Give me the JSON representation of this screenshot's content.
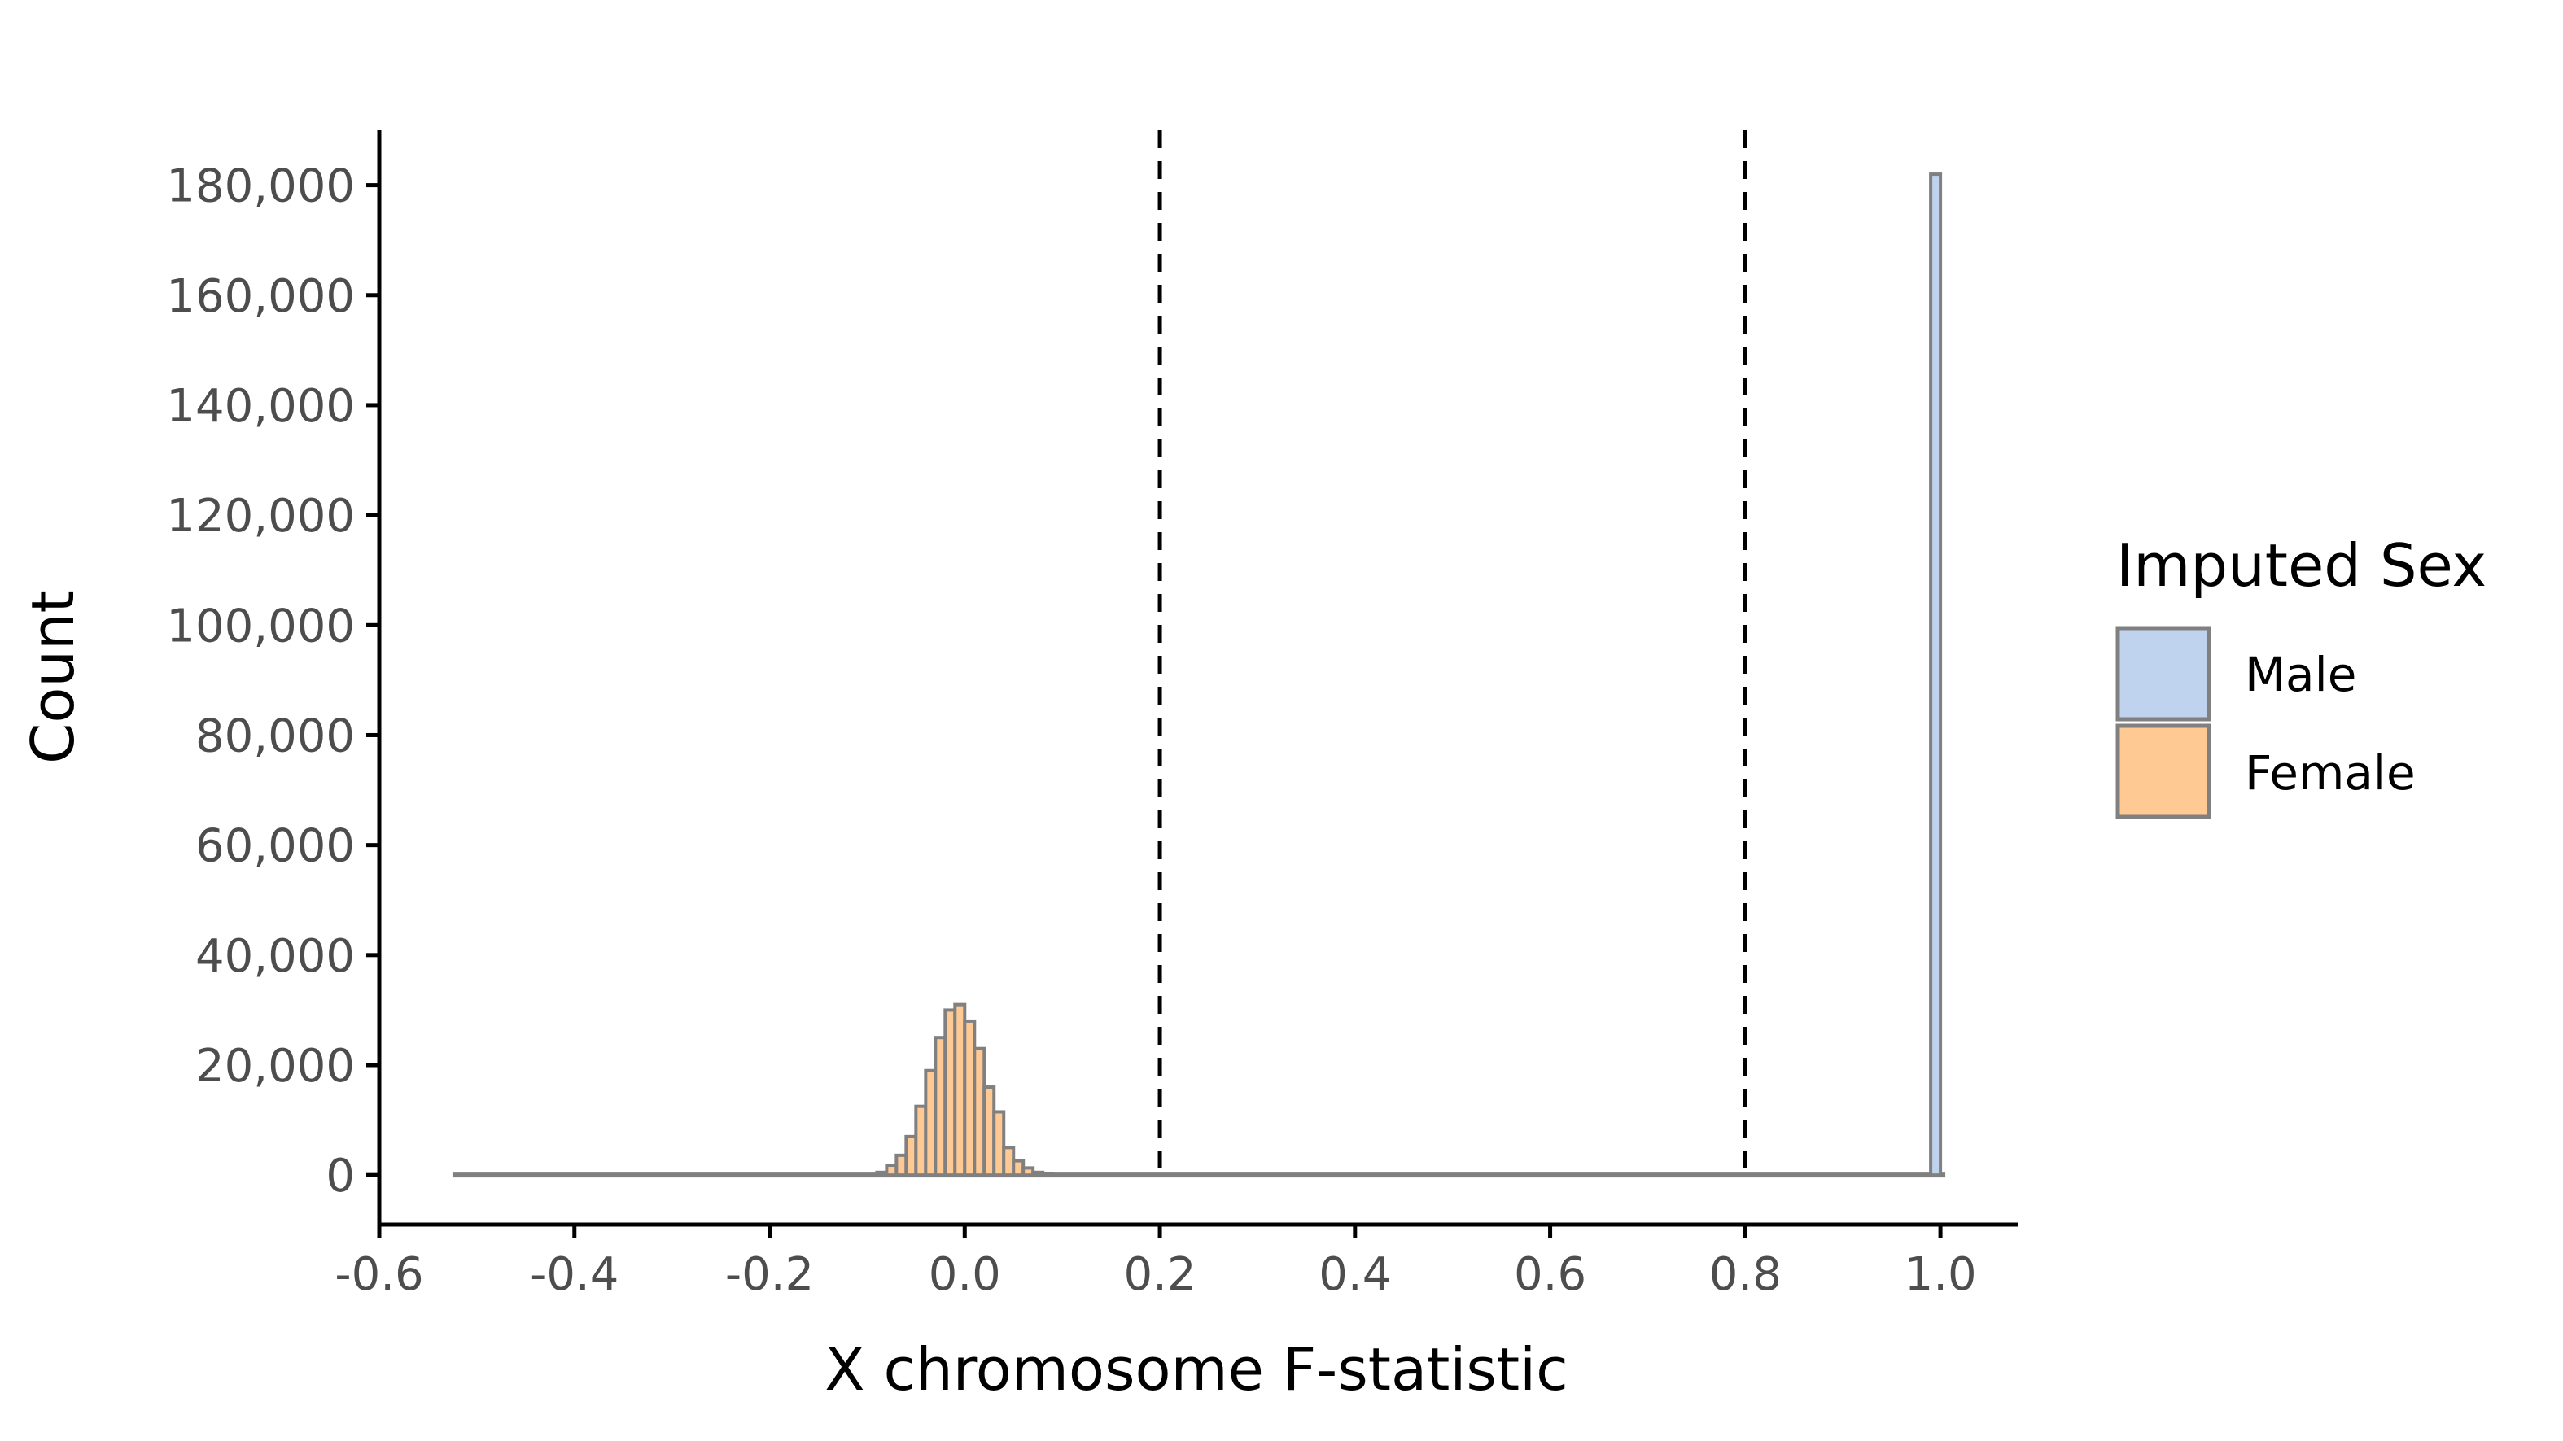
{
  "chart_data": {
    "type": "bar",
    "title": "",
    "xlabel": "X chromosome F-statistic",
    "ylabel": "Count",
    "xlim": [
      -0.6,
      1.08
    ],
    "ylim": [
      -9000,
      190000
    ],
    "x_ticks": [
      -0.6,
      -0.4,
      -0.2,
      0.0,
      0.2,
      0.4,
      0.6,
      0.8,
      1.0
    ],
    "x_tick_labels": [
      "-0.6",
      "-0.4",
      "-0.2",
      "0.0",
      "0.2",
      "0.4",
      "0.6",
      "0.8",
      "1.0"
    ],
    "y_ticks": [
      0,
      20000,
      40000,
      60000,
      80000,
      100000,
      120000,
      140000,
      160000,
      180000
    ],
    "y_tick_labels": [
      "0",
      "20,000",
      "40,000",
      "60,000",
      "80,000",
      "100,000",
      "120,000",
      "140,000",
      "160,000",
      "180,000"
    ],
    "x_range_of_bars": [
      -0.525,
      1.005
    ],
    "bin_width": 0.01,
    "series": [
      {
        "name": "Female",
        "color": "#ffc994",
        "bins": [
          {
            "x": -0.085,
            "count": 500
          },
          {
            "x": -0.075,
            "count": 1800
          },
          {
            "x": -0.065,
            "count": 3600
          },
          {
            "x": -0.055,
            "count": 7000
          },
          {
            "x": -0.045,
            "count": 12500
          },
          {
            "x": -0.035,
            "count": 19000
          },
          {
            "x": -0.025,
            "count": 25000
          },
          {
            "x": -0.015,
            "count": 30000
          },
          {
            "x": -0.005,
            "count": 31000
          },
          {
            "x": 0.005,
            "count": 28000
          },
          {
            "x": 0.015,
            "count": 23000
          },
          {
            "x": 0.025,
            "count": 16000
          },
          {
            "x": 0.035,
            "count": 11500
          },
          {
            "x": 0.045,
            "count": 5000
          },
          {
            "x": 0.055,
            "count": 2600
          },
          {
            "x": 0.065,
            "count": 1300
          },
          {
            "x": 0.075,
            "count": 500
          },
          {
            "x": 0.085,
            "count": 200
          }
        ]
      },
      {
        "name": "Male",
        "color": "#bfd2ee",
        "bins": [
          {
            "x": 0.995,
            "count": 182000
          }
        ]
      }
    ],
    "vlines": [
      0.2,
      0.8
    ],
    "vline_style": "dashed",
    "bar_outline_color": "#808080",
    "legend": {
      "title": "Imputed Sex",
      "position": "right",
      "items": [
        {
          "label": "Male",
          "color": "#bfd2ee"
        },
        {
          "label": "Female",
          "color": "#ffc994"
        }
      ]
    },
    "grid": false
  }
}
